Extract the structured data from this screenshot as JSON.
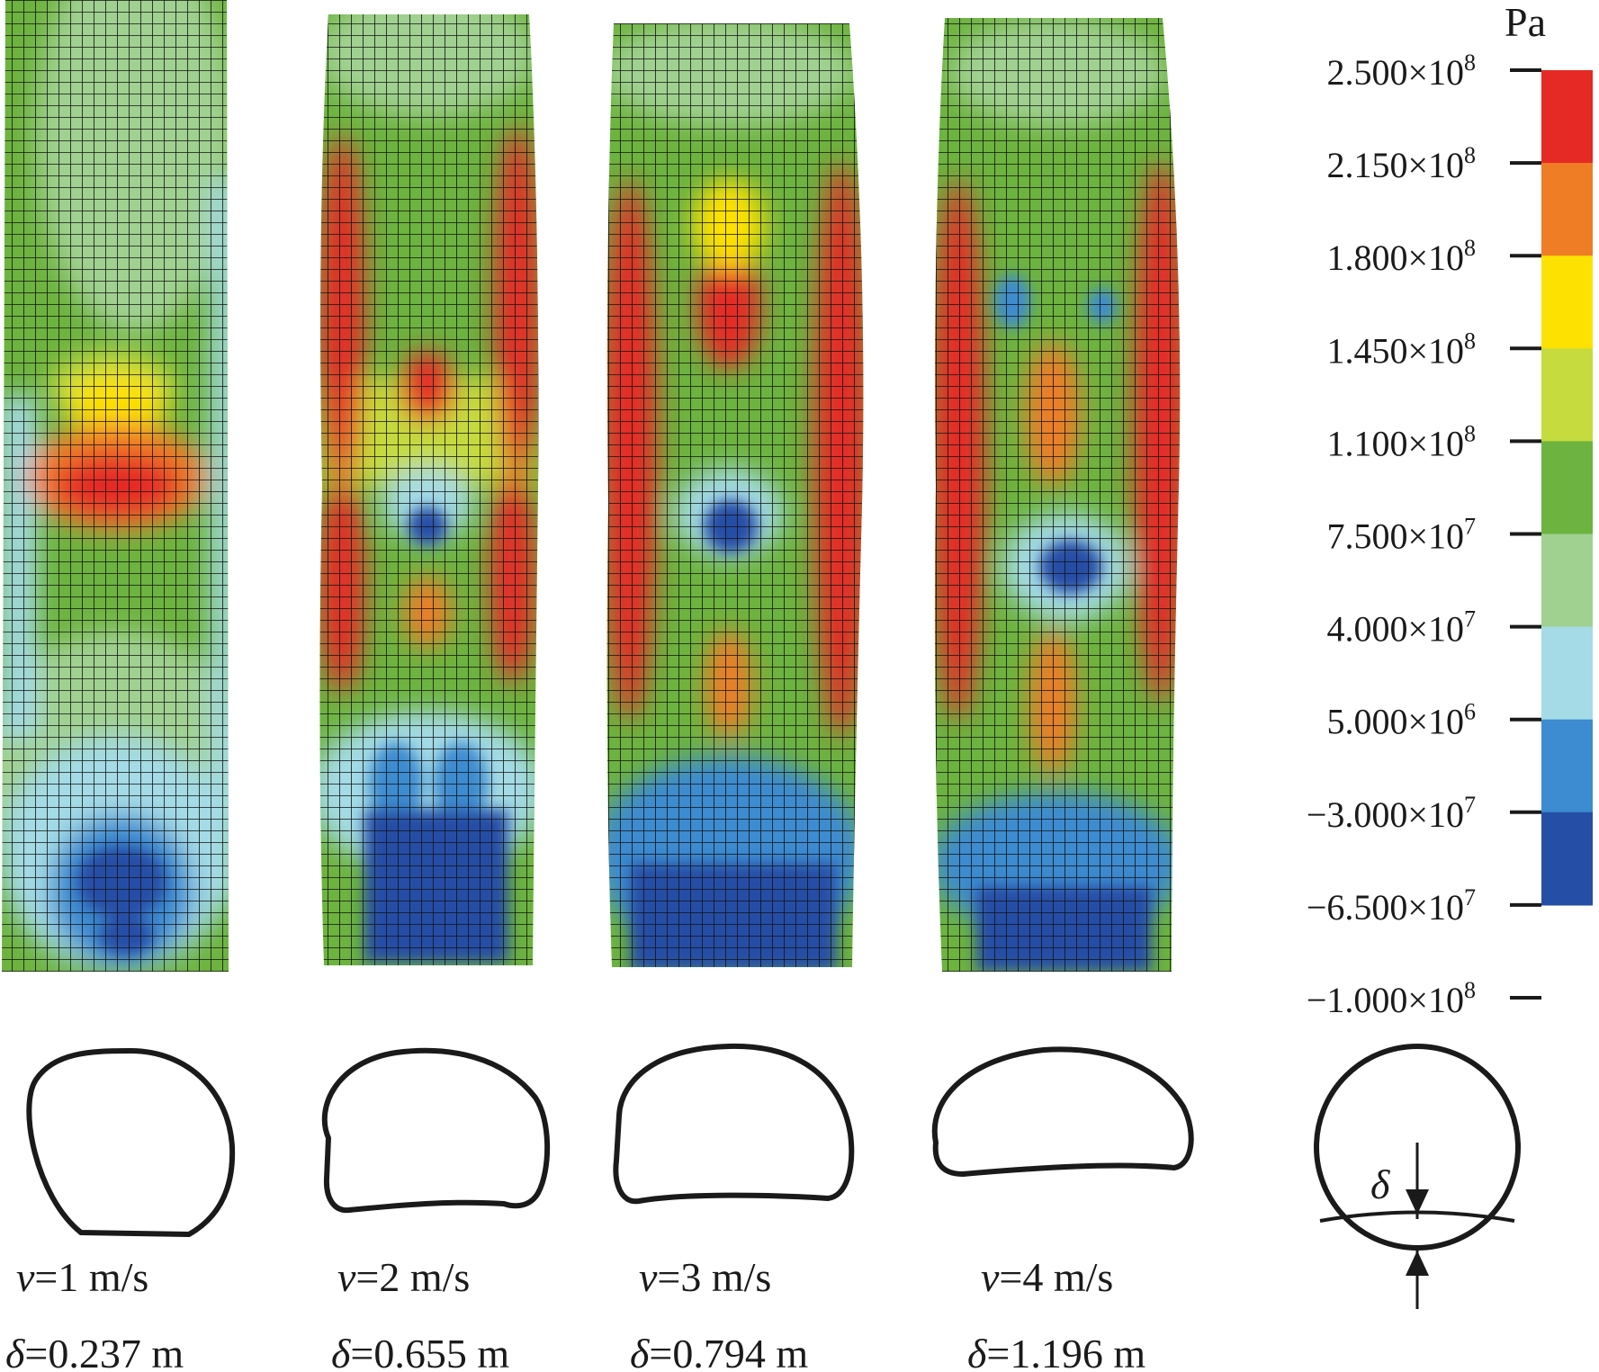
{
  "legend": {
    "unit": "Pa",
    "colors": [
      "#e52a25",
      "#ef7d25",
      "#fde100",
      "#c5db3e",
      "#6db33f",
      "#a0d191",
      "#a4dbe6",
      "#3d8bd0",
      "#254ea6"
    ],
    "ticks": [
      {
        "mantissa": "2.500",
        "exp": "8"
      },
      {
        "mantissa": "2.150",
        "exp": "8"
      },
      {
        "mantissa": "1.800",
        "exp": "8"
      },
      {
        "mantissa": "1.450",
        "exp": "8"
      },
      {
        "mantissa": "1.100",
        "exp": "8"
      },
      {
        "mantissa": "7.500",
        "exp": "7"
      },
      {
        "mantissa": "4.000",
        "exp": "7"
      },
      {
        "mantissa": "5.000",
        "exp": "6"
      },
      {
        "mantissa": "−3.000",
        "exp": "7"
      },
      {
        "mantissa": "−6.500",
        "exp": "7"
      },
      {
        "mantissa": "−1.000",
        "exp": "8"
      }
    ],
    "times": "×10"
  },
  "cases": [
    {
      "v_label": "=1 m/s",
      "d_label": "=0.237 m"
    },
    {
      "v_label": "=2 m/s",
      "d_label": "=0.655 m"
    },
    {
      "v_label": "=3 m/s",
      "d_label": "=0.794 m"
    },
    {
      "v_label": "=4 m/s",
      "d_label": "=1.196 m"
    }
  ],
  "symbols": {
    "v": "v",
    "delta": "δ"
  }
}
